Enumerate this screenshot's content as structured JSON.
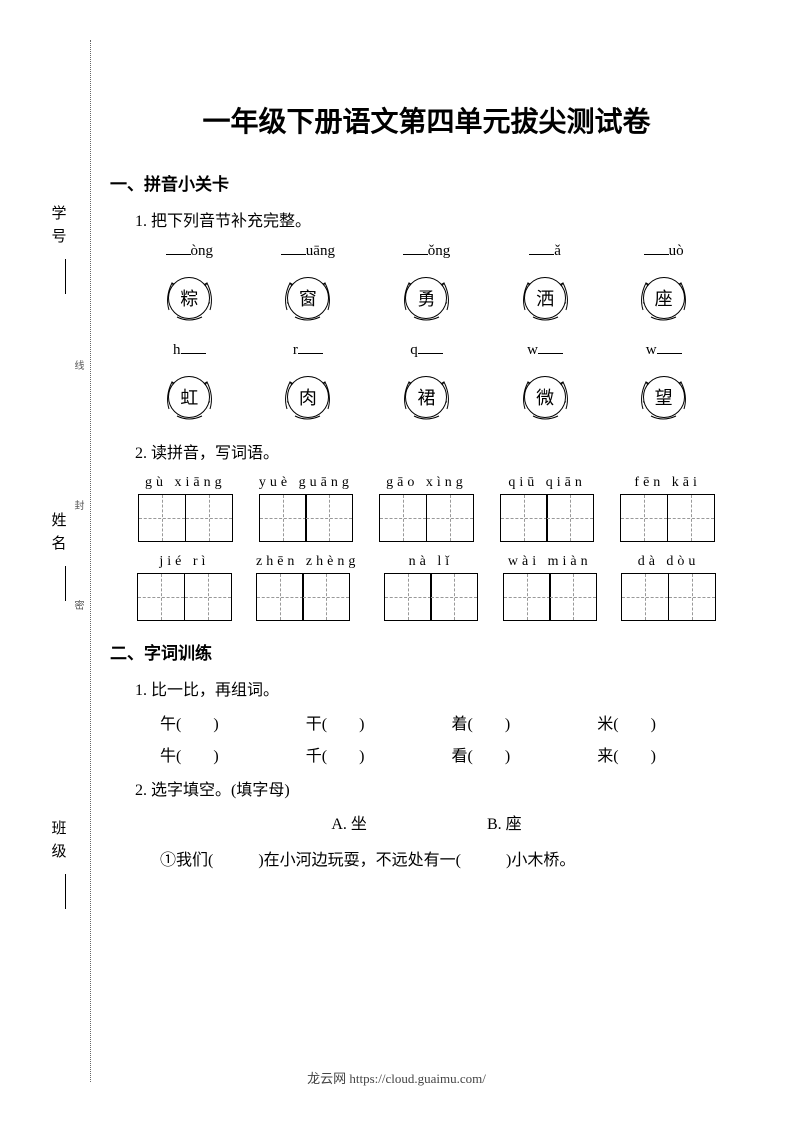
{
  "title": "一年级下册语文第四单元拔尖测试卷",
  "side": {
    "xuehao": "学号",
    "xingming": "姓名",
    "banji": "班级",
    "small1": "线",
    "small2": "封",
    "small3": "密"
  },
  "section1": {
    "heading": "一、拼音小关卡",
    "q1": "1. 把下列音节补充完整。",
    "row1": [
      {
        "suffix": "òng",
        "char": "粽"
      },
      {
        "suffix": "uāng",
        "char": "窗"
      },
      {
        "suffix": "ǒng",
        "char": "勇"
      },
      {
        "suffix": "ǎ",
        "char": "洒"
      },
      {
        "suffix": "uò",
        "char": "座"
      }
    ],
    "row2": [
      {
        "prefix": "h",
        "char": "虹"
      },
      {
        "prefix": "r",
        "char": "肉"
      },
      {
        "prefix": "q",
        "char": "裙"
      },
      {
        "prefix": "w",
        "char": "微"
      },
      {
        "prefix": "w",
        "char": "望"
      }
    ],
    "q2": "2. 读拼音，写词语。",
    "words_row1": [
      {
        "pinyin": "gù xiāng"
      },
      {
        "pinyin": "yuè guāng"
      },
      {
        "pinyin": "gāo xìng"
      },
      {
        "pinyin": "qiū qiān"
      },
      {
        "pinyin": "fēn kāi"
      }
    ],
    "words_row2": [
      {
        "pinyin": "jié rì"
      },
      {
        "pinyin": "zhēn zhèng"
      },
      {
        "pinyin": "nà lǐ"
      },
      {
        "pinyin": "wài miàn"
      },
      {
        "pinyin": "dà dòu"
      }
    ]
  },
  "section2": {
    "heading": "二、字词训练",
    "q1": "1. 比一比，再组词。",
    "compare_row1": [
      "午(　　)",
      "干(　　)",
      "着(　　)",
      "米(　　)"
    ],
    "compare_row2": [
      "牛(　　)",
      "千(　　)",
      "看(　　)",
      "来(　　)"
    ],
    "q2": "2. 选字填空。(填字母)",
    "choiceA": "A. 坐",
    "choiceB": "B. 座",
    "sentence1_pre": "①我们(",
    "sentence1_mid": ")在小河边玩耍，不远处有一(",
    "sentence1_end": ")小木桥。"
  },
  "footer": "龙云网 https://cloud.guaimu.com/"
}
